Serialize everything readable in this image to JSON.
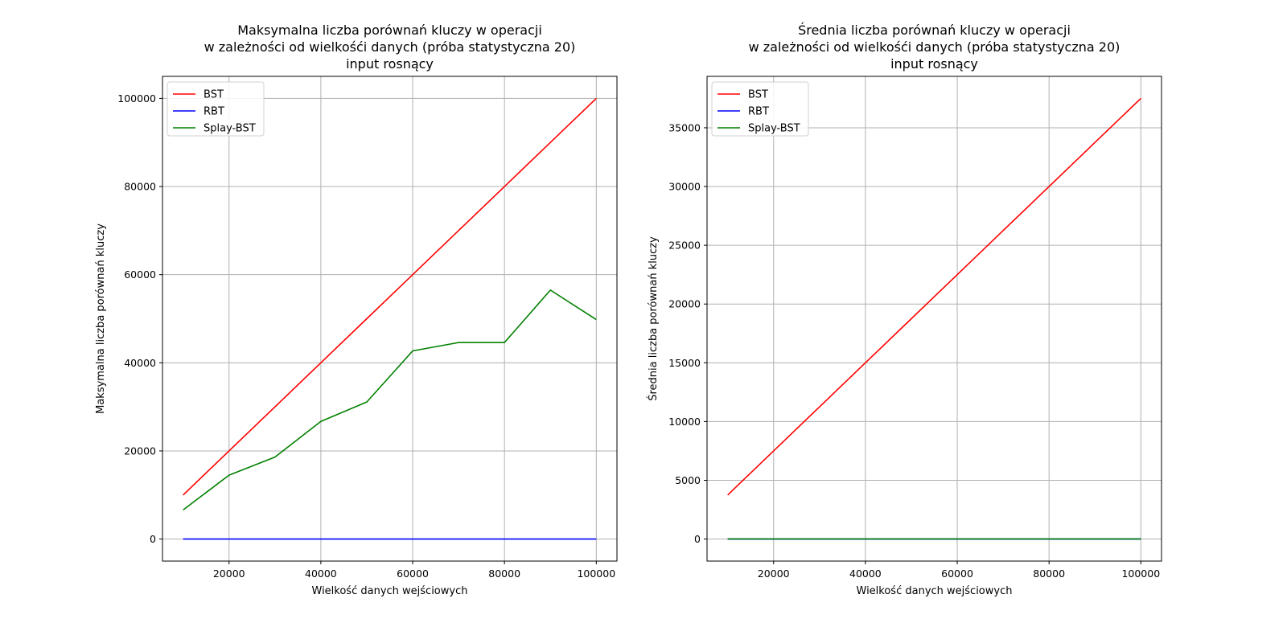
{
  "chart_data": [
    {
      "type": "line",
      "title_lines": [
        "Maksymalna liczba porównań kluczy w operacji",
        "w zależności od wielkośći danych (próba statystyczna 20)",
        "input rosnący"
      ],
      "xlabel": "Wielkość danych wejściowych",
      "ylabel": "Maksymalna liczba porównań kluczy",
      "xlim": [
        5500,
        104500
      ],
      "ylim": [
        -5000,
        105000
      ],
      "xticks": [
        20000,
        40000,
        60000,
        80000,
        100000
      ],
      "yticks": [
        0,
        20000,
        40000,
        60000,
        80000,
        100000
      ],
      "grid": true,
      "legend_position": "upper-left",
      "x": [
        10000,
        20000,
        30000,
        40000,
        50000,
        60000,
        70000,
        80000,
        90000,
        100000
      ],
      "series": [
        {
          "name": "BST",
          "color": "#ff0000",
          "values": [
            10000,
            20000,
            30000,
            40000,
            50000,
            60000,
            70000,
            80000,
            90000,
            100000
          ]
        },
        {
          "name": "RBT",
          "color": "#0000ff",
          "values": [
            0,
            0,
            0,
            0,
            0,
            0,
            0,
            0,
            0,
            0
          ]
        },
        {
          "name": "Splay-BST",
          "color": "#008000",
          "values": [
            6600,
            14500,
            18600,
            26700,
            31100,
            42700,
            44600,
            44600,
            56500,
            49800
          ]
        }
      ]
    },
    {
      "type": "line",
      "title_lines": [
        "Średnia liczba porównań kluczy w operacji",
        "w zależności od wielkośći danych (próba statystyczna 20)",
        "input rosnący"
      ],
      "xlabel": "Wielkość danych wejściowych",
      "ylabel": "Średnia liczba porównań kluczy",
      "xlim": [
        5500,
        104500
      ],
      "ylim": [
        -1875,
        39375
      ],
      "xticks": [
        20000,
        40000,
        60000,
        80000,
        100000
      ],
      "yticks": [
        0,
        5000,
        10000,
        15000,
        20000,
        25000,
        30000,
        35000
      ],
      "grid": true,
      "legend_position": "upper-left",
      "x": [
        10000,
        20000,
        30000,
        40000,
        50000,
        60000,
        70000,
        80000,
        90000,
        100000
      ],
      "series": [
        {
          "name": "BST",
          "color": "#ff0000",
          "values": [
            3750,
            7500,
            11250,
            15000,
            18750,
            22500,
            26250,
            30000,
            33750,
            37500
          ]
        },
        {
          "name": "RBT",
          "color": "#0000ff",
          "values": [
            5,
            5,
            5,
            5,
            5,
            5,
            5,
            5,
            5,
            5
          ]
        },
        {
          "name": "Splay-BST",
          "color": "#008000",
          "values": [
            8,
            8,
            8,
            8,
            8,
            8,
            8,
            8,
            8,
            8
          ]
        }
      ]
    }
  ]
}
